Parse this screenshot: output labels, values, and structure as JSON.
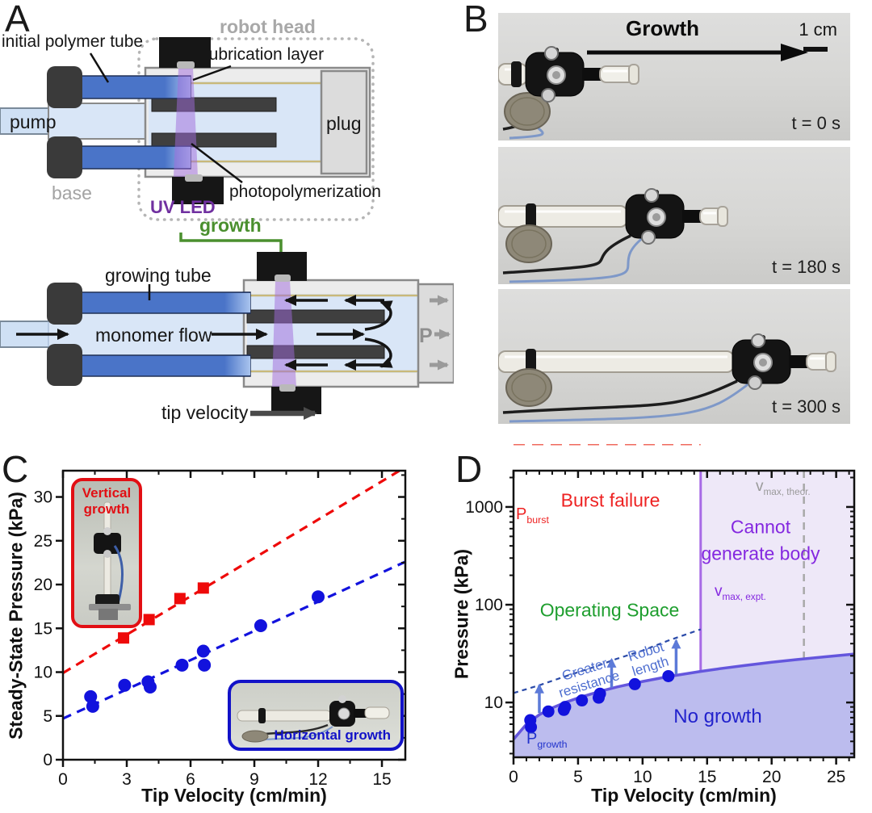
{
  "panels": {
    "a": "A",
    "b": "B",
    "c": "C",
    "d": "D"
  },
  "colors": {
    "red": "#ee0a0a",
    "blue": "#1212dd",
    "uv_purple": "#7030a0",
    "growth_green": "#4a8f2e",
    "region_burst": "#fbc9c4",
    "region_operating": "#ccf5c8",
    "region_cannot": "#eee8f8",
    "region_no_growth": "#bcbcee"
  },
  "panel_a": {
    "initial_polymer_tube": "initial polymer tube",
    "robot_head": "robot head",
    "lubrication_layer": "lubrication layer",
    "pump": "pump",
    "plug": "plug",
    "base": "base",
    "uv_led": "UV LED",
    "photopolymerization": "photopolymerization",
    "growth": "growth",
    "growing_tube": "growing tube",
    "monomer_flow": "monomer flow",
    "pressure_symbol": "P",
    "tip_velocity": "tip velocity"
  },
  "panel_b": {
    "growth_label": "Growth",
    "scale_bar": "1 cm",
    "frames": [
      {
        "time": "t = 0 s"
      },
      {
        "time": "t = 180 s"
      },
      {
        "time": "t = 300 s"
      }
    ]
  },
  "chart_data": [
    {
      "id": "C",
      "type": "scatter",
      "xlabel": "Tip Velocity (cm/min)",
      "ylabel": "Steady-State Pressure (kPa)",
      "xlim": [
        0,
        16.1
      ],
      "ylim": [
        0,
        33
      ],
      "grid": false,
      "x_major_ticks": [
        0,
        3,
        6,
        9,
        12,
        15
      ],
      "x_minor_step": 1.5,
      "y_major_ticks": [
        0,
        5,
        10,
        15,
        20,
        25,
        30
      ],
      "y_minor_step": 2.5,
      "series": [
        {
          "name": "Vertical growth",
          "marker": "square",
          "color": "#ee0a0a",
          "points": [
            [
              2.85,
              13.9
            ],
            [
              4.05,
              16.0
            ],
            [
              5.5,
              18.4
            ],
            [
              6.6,
              19.6
            ]
          ],
          "fit_line": {
            "x1": 0,
            "y1": 9.9,
            "x2": 16.1,
            "y2": 33.4,
            "style": "dashed"
          }
        },
        {
          "name": "Horizontal growth",
          "marker": "circle",
          "color": "#1212dd",
          "points": [
            [
              1.3,
              7.2
            ],
            [
              1.4,
              6.1
            ],
            [
              2.9,
              8.5
            ],
            [
              4.0,
              8.9
            ],
            [
              4.1,
              8.3
            ],
            [
              5.6,
              10.8
            ],
            [
              6.6,
              12.4
            ],
            [
              6.65,
              10.8
            ],
            [
              9.3,
              15.3
            ],
            [
              12.0,
              18.6
            ]
          ],
          "fit_line": {
            "x1": 0,
            "y1": 4.7,
            "x2": 16.1,
            "y2": 22.6,
            "style": "dashed"
          }
        }
      ],
      "insets": [
        {
          "label_line1": "Vertical",
          "label_line2": "growth"
        },
        {
          "label": "Horizontal growth"
        }
      ]
    },
    {
      "id": "D",
      "type": "area",
      "xlabel": "Tip Velocity (cm/min)",
      "ylabel": "Pressure (kPa)",
      "xlim": [
        0,
        26.4
      ],
      "ylim": [
        2.75,
        2350
      ],
      "y_scale": "log",
      "x_major_ticks": [
        0,
        5,
        10,
        15,
        20,
        25
      ],
      "x_minor_step": 1,
      "y_major_ticks": [
        10,
        100,
        1000
      ],
      "boundaries": {
        "p_burst_kpa": 500,
        "v_max_expt": 14.5,
        "v_max_theor": 22.5
      },
      "growth_curve": [
        [
          0,
          4.2
        ],
        [
          1,
          6.0
        ],
        [
          2,
          7.5
        ],
        [
          3,
          8.8
        ],
        [
          4,
          10.0
        ],
        [
          5,
          11.1
        ],
        [
          6,
          12.2
        ],
        [
          7,
          13.3
        ],
        [
          8,
          14.4
        ],
        [
          9,
          15.4
        ],
        [
          10,
          16.4
        ],
        [
          12,
          18.4
        ],
        [
          14.5,
          20.8
        ],
        [
          16,
          22.2
        ],
        [
          18,
          24.0
        ],
        [
          20,
          25.8
        ],
        [
          22,
          27.5
        ],
        [
          24,
          29.2
        ],
        [
          26.4,
          31.3
        ]
      ],
      "resistance_curve": [
        [
          0,
          12.5
        ],
        [
          2,
          15.0
        ],
        [
          4,
          18.5
        ],
        [
          6,
          22.5
        ],
        [
          8,
          28.0
        ],
        [
          10,
          34.0
        ],
        [
          12,
          43.0
        ],
        [
          14.5,
          56.0
        ]
      ],
      "data_points": [
        [
          1.3,
          6.6
        ],
        [
          1.35,
          5.6
        ],
        [
          2.7,
          8.1
        ],
        [
          3.9,
          8.4
        ],
        [
          4.0,
          9.0
        ],
        [
          5.3,
          10.5
        ],
        [
          6.6,
          11.2
        ],
        [
          6.7,
          12.3
        ],
        [
          9.4,
          15.4
        ],
        [
          12.0,
          18.6
        ]
      ],
      "arrows": [
        {
          "v": 2.0,
          "from": 7.8,
          "to": 15.0
        },
        {
          "v": 7.6,
          "from": 14.2,
          "to": 27.5
        },
        {
          "v": 12.6,
          "from": 19.5,
          "to": 43.0
        }
      ],
      "regions": [
        {
          "name": "Burst failure",
          "color": "#fbc9c4"
        },
        {
          "name": "Operating Space",
          "color": "#ccf5c8"
        },
        {
          "name": "Cannot generate body",
          "color": "#eee8f8"
        },
        {
          "name": "No growth",
          "color": "#bcbcee"
        }
      ],
      "labels": {
        "cannot_line1": "Cannot",
        "cannot_line2": "generate body",
        "p_burst": {
          "main": "P",
          "sub": "burst"
        },
        "p_growth": {
          "main": "P",
          "sub": "growth"
        },
        "v_max_expt": {
          "main": "v",
          "sub": "max, expt."
        },
        "v_max_theor": {
          "main": "v",
          "sub": "max, theor."
        },
        "greater_line1": "Greater",
        "greater_line2": "resistance",
        "robot_line1": "Robot",
        "robot_line2": "length"
      }
    }
  ]
}
